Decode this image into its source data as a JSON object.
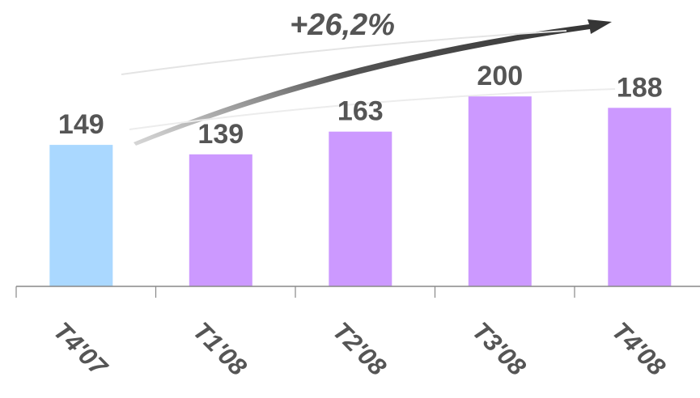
{
  "chart_data": {
    "type": "bar",
    "categories": [
      "T4'07",
      "T1'08",
      "T2'08",
      "T3'08",
      "T4'08"
    ],
    "values": [
      149,
      139,
      163,
      200,
      188
    ],
    "colors": [
      "#aad8ff",
      "#cc99ff",
      "#cc99ff",
      "#cc99ff",
      "#cc99ff"
    ],
    "annotation": "+26,2%",
    "ylim": [
      0,
      230
    ],
    "grid": false
  }
}
